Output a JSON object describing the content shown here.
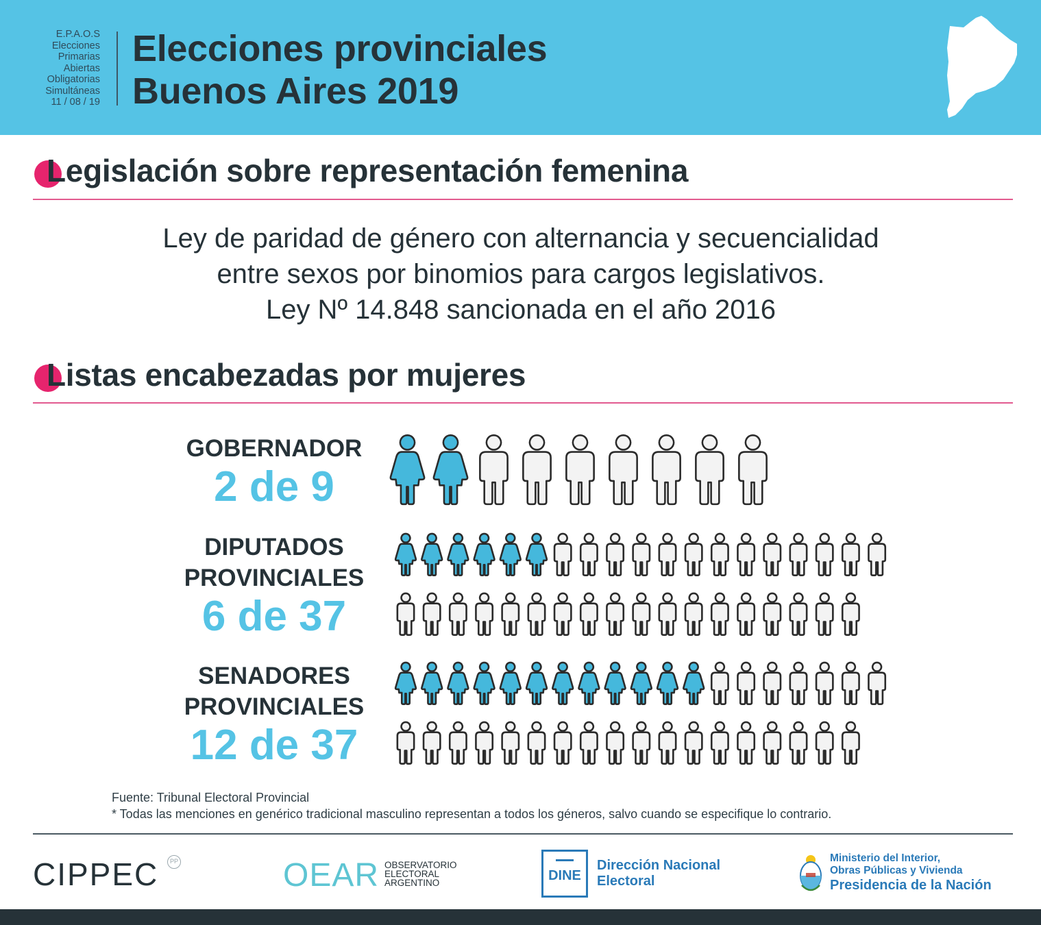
{
  "header": {
    "epaos_lines": [
      "E.P.A.O.S",
      "Elecciones",
      "Primarias",
      "Abiertas",
      "Obligatorias",
      "Simultáneas",
      "11 / 08 / 19"
    ],
    "title_line1": "Elecciones provinciales",
    "title_line2": "Buenos Aires 2019"
  },
  "sections": {
    "legislation": {
      "title": "Legislación sobre representación femenina",
      "law_lines": [
        "Ley de paridad de género con alternancia y secuencialidad",
        "entre sexos por binomios para cargos legislativos.",
        "Ley Nº 14.848 sancionada en el año 2016"
      ]
    },
    "lists": {
      "title": "Listas encabezadas por mujeres"
    }
  },
  "categories": [
    {
      "id": "gobernador",
      "name_lines": [
        "GOBERNADOR"
      ],
      "count_label": "2 de 9",
      "women": 2,
      "total": 9
    },
    {
      "id": "diputados",
      "name_lines": [
        "DIPUTADOS",
        "PROVINCIALES"
      ],
      "count_label": "6 de 37",
      "women": 6,
      "total": 37
    },
    {
      "id": "senadores",
      "name_lines": [
        "SENADORES",
        "PROVINCIALES"
      ],
      "count_label": "12 de 37",
      "women": 12,
      "total": 37
    }
  ],
  "notes": {
    "source": "Fuente: Tribunal Electoral Provincial",
    "disclaimer": "* Todas las menciones en genérico tradicional masculino representan a todos los géneros, salvo cuando se especifique lo contrario."
  },
  "logos": {
    "cippec": "CIPPEC",
    "cippec_badge": "PP",
    "oear": "OEAR",
    "oear_sub": [
      "OBSERVATORIO",
      "ELECTORAL",
      "ARGENTINO"
    ],
    "dine_box": "DINE",
    "dine_name": [
      "Dirección Nacional",
      "Electoral"
    ],
    "ministerio": [
      "Ministerio del Interior,",
      "Obras Públicas y Vivienda"
    ],
    "presidencia": "Presidencia de la Nación"
  },
  "colors": {
    "header_bg": "#55c3e5",
    "accent_pink": "#e6246d",
    "woman_fill": "#45b8dc",
    "man_fill": "#f3f3f3",
    "text_dark": "#263238",
    "institutional_blue": "#2a7ab8"
  },
  "icons": {
    "woman": "woman-icon",
    "man": "man-icon",
    "map": "buenos-aires-map-icon"
  }
}
